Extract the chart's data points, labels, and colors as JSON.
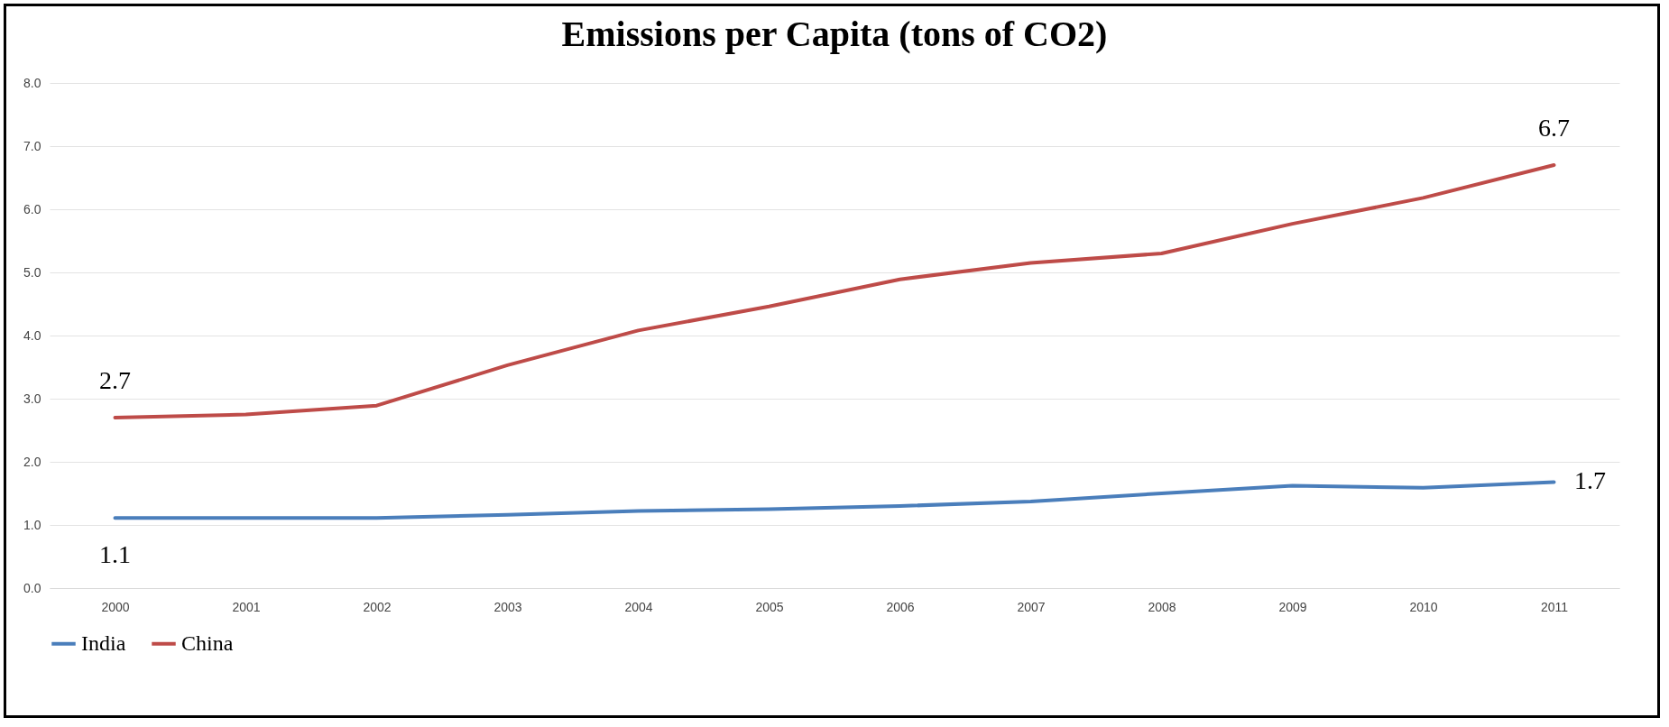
{
  "chart_data": {
    "type": "line",
    "title": "Emissions per Capita (tons of CO2)",
    "categories": [
      "2000",
      "2001",
      "2002",
      "2003",
      "2004",
      "2005",
      "2006",
      "2007",
      "2008",
      "2009",
      "2010",
      "2011"
    ],
    "series": [
      {
        "name": "India",
        "color": "#4a7ebb",
        "values": [
          1.11,
          1.11,
          1.11,
          1.16,
          1.22,
          1.25,
          1.3,
          1.37,
          1.5,
          1.62,
          1.59,
          1.68
        ],
        "value_labels": [
          "1.1",
          null,
          null,
          null,
          null,
          null,
          null,
          null,
          null,
          null,
          null,
          "1.7"
        ]
      },
      {
        "name": "China",
        "color": "#be4b48",
        "values": [
          2.7,
          2.75,
          2.89,
          3.53,
          4.08,
          4.46,
          4.89,
          5.15,
          5.3,
          5.77,
          6.18,
          6.7
        ],
        "value_labels": [
          "2.7",
          null,
          null,
          null,
          null,
          null,
          null,
          null,
          null,
          null,
          null,
          "6.7"
        ]
      }
    ],
    "ylim": [
      0,
      8
    ],
    "yticks": [
      {
        "value": 0,
        "label": "0.0"
      },
      {
        "value": 1,
        "label": "1.0"
      },
      {
        "value": 2,
        "label": "2.0"
      },
      {
        "value": 3,
        "label": "3.0"
      },
      {
        "value": 4,
        "label": "4.0"
      },
      {
        "value": 5,
        "label": "5.0"
      },
      {
        "value": 6,
        "label": "6.0"
      },
      {
        "value": 7,
        "label": "7.0"
      },
      {
        "value": 8,
        "label": "8.0"
      }
    ],
    "grid": "y",
    "legend": "bottom",
    "marker": "none",
    "line_style": "solid"
  }
}
